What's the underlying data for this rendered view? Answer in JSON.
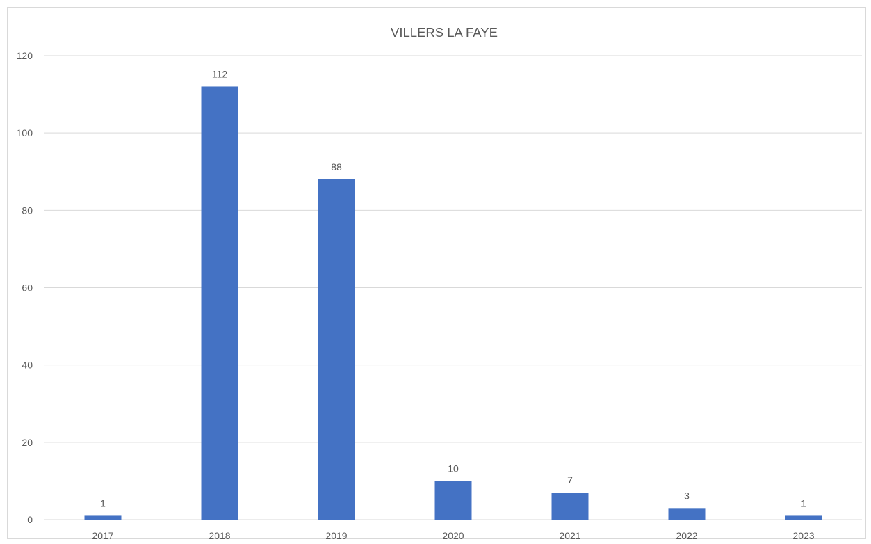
{
  "chart_data": {
    "type": "bar",
    "title": "VILLERS LA FAYE",
    "xlabel": "",
    "ylabel": "",
    "categories": [
      "2017",
      "2018",
      "2019",
      "2020",
      "2021",
      "2022",
      "2023"
    ],
    "values": [
      1,
      112,
      88,
      10,
      7,
      3,
      1
    ],
    "data_labels": [
      "1",
      "112",
      "88",
      "10",
      "7",
      "3",
      "1"
    ],
    "ylim": [
      0,
      120
    ],
    "yticks": [
      0,
      20,
      40,
      60,
      80,
      100,
      120
    ],
    "ytick_labels": [
      "0",
      "20",
      "40",
      "60",
      "80",
      "100",
      "120"
    ],
    "grid": true,
    "legend": "none",
    "colors": {
      "bar": "#4472c4",
      "grid": "#d9d9d9",
      "text": "#595959",
      "frame": "#d9d9d9"
    }
  }
}
